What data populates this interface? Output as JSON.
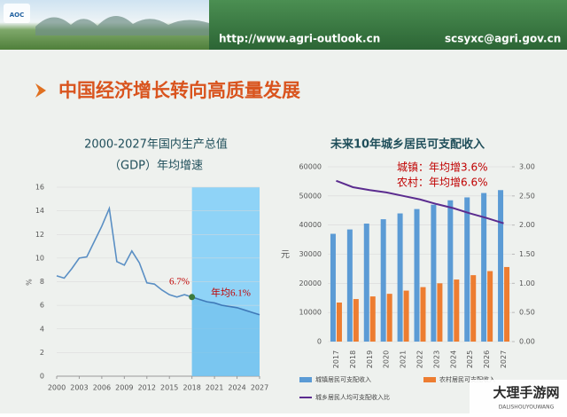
{
  "header": {
    "logo": "AOC",
    "url": "http://www.agri-outlook.cn",
    "email": "scsyxc@agri.gov.cn"
  },
  "slide_title": "中国经济增长转向高质量发展",
  "watermark": {
    "title": "大理手游网",
    "subtitle": "DALISHOUYOUWANG"
  },
  "chart_data": [
    {
      "type": "line",
      "title": [
        "2000-2027年国内生产总值",
        "（GDP）年均增速"
      ],
      "ylabel": "%",
      "x": [
        2000,
        2001,
        2002,
        2003,
        2004,
        2005,
        2006,
        2007,
        2008,
        2009,
        2010,
        2011,
        2012,
        2013,
        2014,
        2015,
        2016,
        2017,
        2018,
        2019,
        2020,
        2021,
        2022,
        2023,
        2024,
        2025,
        2026,
        2027
      ],
      "series": [
        {
          "color": "#5a8fc4",
          "values": [
            8.5,
            8.3,
            9.1,
            10.0,
            10.1,
            11.4,
            12.7,
            14.2,
            9.7,
            9.4,
            10.6,
            9.6,
            7.9,
            7.8,
            7.3,
            6.9,
            6.7,
            6.9,
            6.7,
            null,
            null,
            null,
            null,
            null,
            null,
            null,
            null,
            null
          ]
        },
        {
          "color": "#3f79b8",
          "fill": "#74c3ee",
          "values": [
            null,
            null,
            null,
            null,
            null,
            null,
            null,
            null,
            null,
            null,
            null,
            null,
            null,
            null,
            null,
            null,
            null,
            null,
            6.7,
            6.5,
            6.3,
            6.2,
            6.0,
            5.9,
            5.8,
            5.6,
            5.4,
            5.2
          ]
        }
      ],
      "point_color": "#3c7a3c",
      "highlight_xrange": [
        2018,
        2027
      ],
      "highlight_color": "#8fd3f7",
      "annotations": [
        {
          "text": "6.7%",
          "color": "#c00000"
        },
        {
          "text": "年均6.1%",
          "color": "#c00000"
        }
      ],
      "xlim": [
        2000,
        2027
      ],
      "xticks": [
        2000,
        2003,
        2006,
        2009,
        2012,
        2015,
        2018,
        2021,
        2024,
        2027
      ],
      "ylim": [
        0,
        16
      ],
      "yticks": [
        0,
        2,
        4,
        6,
        8,
        10,
        12,
        14,
        16
      ],
      "grid": true
    },
    {
      "type": "bar_line",
      "title": "未来10年城乡居民可支配收入",
      "ylabel": "元",
      "categories": [
        "2017",
        "2018",
        "2019",
        "2020",
        "2021",
        "2022",
        "2023",
        "2024",
        "2025",
        "2026",
        "2027"
      ],
      "series": [
        {
          "name": "城镇居民可支配收入",
          "type": "bar",
          "color": "#5b9bd5",
          "values": [
            37000,
            38500,
            40500,
            42000,
            44000,
            45500,
            47000,
            48500,
            49500,
            51000,
            52000
          ]
        },
        {
          "name": "农村居民可支配收入",
          "type": "bar",
          "color": "#ed7d31",
          "values": [
            13400,
            14600,
            15500,
            16400,
            17500,
            18700,
            20000,
            21300,
            22800,
            24200,
            25600
          ]
        },
        {
          "name": "城乡居民人均可支配收入比",
          "type": "line",
          "axis": "y2",
          "color": "#5b2c8f",
          "values": [
            2.76,
            2.65,
            2.6,
            2.56,
            2.5,
            2.44,
            2.36,
            2.29,
            2.2,
            2.12,
            2.03
          ]
        }
      ],
      "annotations": [
        {
          "text": "城镇：年均增3.6%",
          "color": "#c00000"
        },
        {
          "text": "农村：年均增6.6%",
          "color": "#c00000"
        }
      ],
      "ylim": [
        0,
        60000
      ],
      "yticks": [
        0,
        10000,
        20000,
        30000,
        40000,
        50000,
        60000
      ],
      "y2lim": [
        0,
        3
      ],
      "y2ticks": [
        {
          "value": 0,
          "label": "0.00"
        },
        {
          "value": 0.5,
          "label": "0.50"
        },
        {
          "value": 1,
          "label": "1.00"
        },
        {
          "value": 1.5,
          "label": "1.50"
        },
        {
          "value": 2,
          "label": "2.00"
        },
        {
          "value": 2.5,
          "label": "2.50"
        },
        {
          "value": 3,
          "label": "3.00"
        }
      ],
      "grid": true
    }
  ]
}
